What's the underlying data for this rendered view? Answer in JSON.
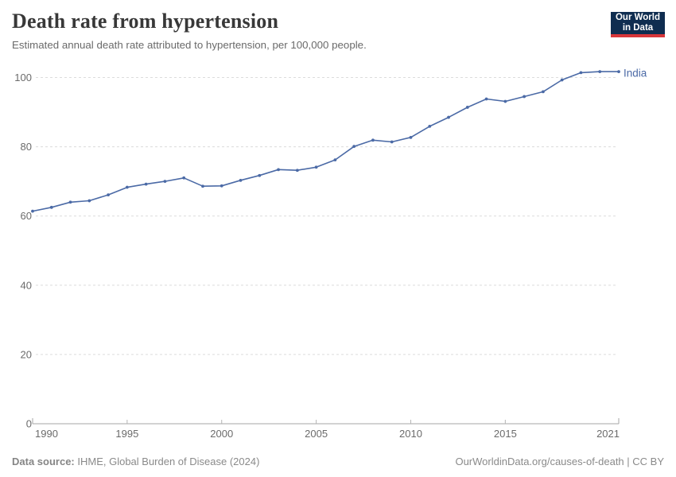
{
  "header": {
    "title": "Death rate from hypertension",
    "subtitle": "Estimated annual death rate attributed to hypertension, per 100,000 people."
  },
  "logo": {
    "line1": "Our World",
    "line2": "in Data",
    "bg_color": "#0f2d50",
    "accent_color": "#d7363a"
  },
  "chart_data": {
    "type": "line",
    "title": "Death rate from hypertension",
    "x": [
      1990,
      1991,
      1992,
      1993,
      1994,
      1995,
      1996,
      1997,
      1998,
      1999,
      2000,
      2001,
      2002,
      2003,
      2004,
      2005,
      2006,
      2007,
      2008,
      2009,
      2010,
      2011,
      2012,
      2013,
      2014,
      2015,
      2016,
      2017,
      2018,
      2019,
      2020,
      2021
    ],
    "series": [
      {
        "name": "India",
        "color": "#4b6aa6",
        "values": [
          61.4,
          62.5,
          64.0,
          64.4,
          66.1,
          68.3,
          69.2,
          70.0,
          71.0,
          68.6,
          68.7,
          70.3,
          71.7,
          73.4,
          73.2,
          74.1,
          76.2,
          80.1,
          81.9,
          81.4,
          82.7,
          85.9,
          88.5,
          91.4,
          93.8,
          93.1,
          94.5,
          95.9,
          99.3,
          101.4,
          101.7,
          101.7
        ]
      }
    ],
    "xlabel": "",
    "ylabel": "",
    "ylim": [
      0,
      100
    ],
    "yticks": [
      0,
      20,
      40,
      60,
      80,
      100
    ],
    "xticks": [
      1990,
      1995,
      2000,
      2005,
      2010,
      2015,
      2021
    ],
    "grid": "horizontal-dashed",
    "legend": "end-of-line-label",
    "colors": {
      "grid": "#dcdcdc",
      "axis": "#a5a5a5",
      "tick": "#b5b5b5",
      "tick_label": "#6b6b6b"
    }
  },
  "footer": {
    "source_label": "Data source:",
    "source_text": " IHME, Global Burden of Disease (2024)",
    "credit": "OurWorldinData.org/causes-of-death | CC BY"
  }
}
